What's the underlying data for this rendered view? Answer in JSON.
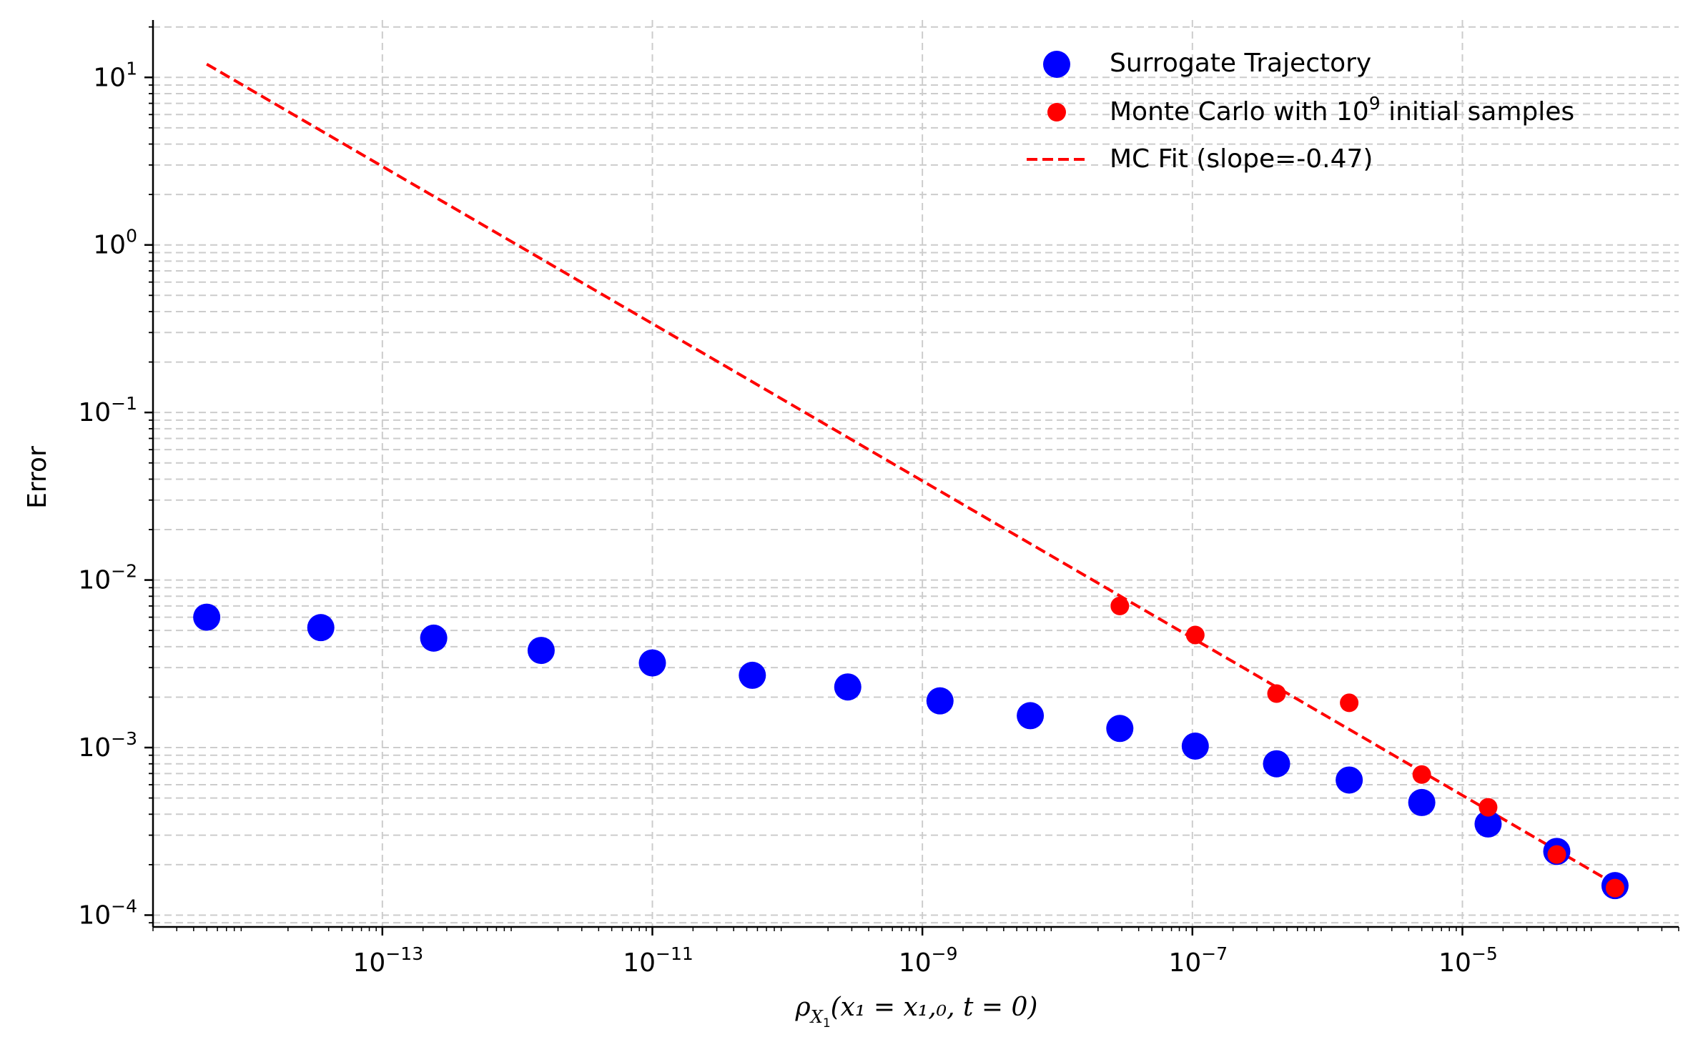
{
  "chart_data": {
    "type": "scatter",
    "scale": {
      "x": "log",
      "y": "log"
    },
    "xlim": [
      2e-15,
      0.0004
    ],
    "ylim": [
      8.5e-05,
      22
    ],
    "grid": true,
    "xlabel": "ρX1(x1 = x1,0, t = 0)",
    "ylabel": "Error",
    "xlabel_parts": {
      "rho": "ρ",
      "subscript": "X",
      "subsubscript": "1",
      "args": "(x₁ = x₁,₀, t = 0)"
    },
    "x_ticks": [
      {
        "value": 1e-13,
        "base": "10",
        "exp": "−13"
      },
      {
        "value": 1e-11,
        "base": "10",
        "exp": "−11"
      },
      {
        "value": 1e-09,
        "base": "10",
        "exp": "−9"
      },
      {
        "value": 1e-07,
        "base": "10",
        "exp": "−7"
      },
      {
        "value": 1e-05,
        "base": "10",
        "exp": "−5"
      }
    ],
    "y_ticks": [
      {
        "value": 10,
        "base": "10",
        "exp": "1"
      },
      {
        "value": 1,
        "base": "10",
        "exp": "0"
      },
      {
        "value": 0.1,
        "base": "10",
        "exp": "−1"
      },
      {
        "value": 0.01,
        "base": "10",
        "exp": "−2"
      },
      {
        "value": 0.001,
        "base": "10",
        "exp": "−3"
      },
      {
        "value": 0.0001,
        "base": "10",
        "exp": "−4"
      }
    ],
    "legend": {
      "position": "top-right",
      "entries": [
        {
          "label": "Surrogate Trajectory",
          "kind": "marker-large",
          "color": "#0000ff"
        },
        {
          "label_parts": [
            "Monte Carlo with ",
            "10",
            "9",
            " initial samples"
          ],
          "label": "Monte Carlo with 10^9 initial samples",
          "kind": "marker-small",
          "color": "#ff0000"
        },
        {
          "label": "MC Fit (slope=-0.47)",
          "kind": "dashed-line",
          "color": "#ff0000"
        }
      ]
    },
    "series": [
      {
        "name": "Surrogate Trajectory",
        "kind": "scatter",
        "color": "#0000ff",
        "marker_size": "large",
        "x": [
          5e-15,
          3.5e-14,
          2.4e-13,
          1.5e-12,
          1e-11,
          5.5e-11,
          2.8e-10,
          1.35e-09,
          6.3e-09,
          2.9e-08,
          1.05e-07,
          4.2e-07,
          1.45e-06,
          5e-06,
          1.55e-05,
          5e-05,
          0.000135
        ],
        "y": [
          0.006,
          0.0052,
          0.0045,
          0.0038,
          0.0032,
          0.0027,
          0.0023,
          0.0019,
          0.00155,
          0.0013,
          0.00102,
          0.0008,
          0.00064,
          0.00047,
          0.00035,
          0.00024,
          0.00015
        ]
      },
      {
        "name": "Monte Carlo with 10^9 initial samples",
        "kind": "scatter",
        "color": "#ff0000",
        "marker_size": "small",
        "x": [
          2.9e-08,
          1.05e-07,
          4.2e-07,
          1.45e-06,
          5e-06,
          1.55e-05,
          5e-05,
          0.000135
        ],
        "y": [
          0.007,
          0.0047,
          0.0021,
          0.00185,
          0.00069,
          0.00044,
          0.00023,
          0.000145
        ]
      },
      {
        "name": "MC Fit (slope=-0.47)",
        "kind": "line",
        "style": "dashed",
        "color": "#ff0000",
        "slope": -0.47,
        "x": [
          5e-15,
          0.000135
        ],
        "y": [
          12,
          0.000153
        ]
      }
    ]
  }
}
